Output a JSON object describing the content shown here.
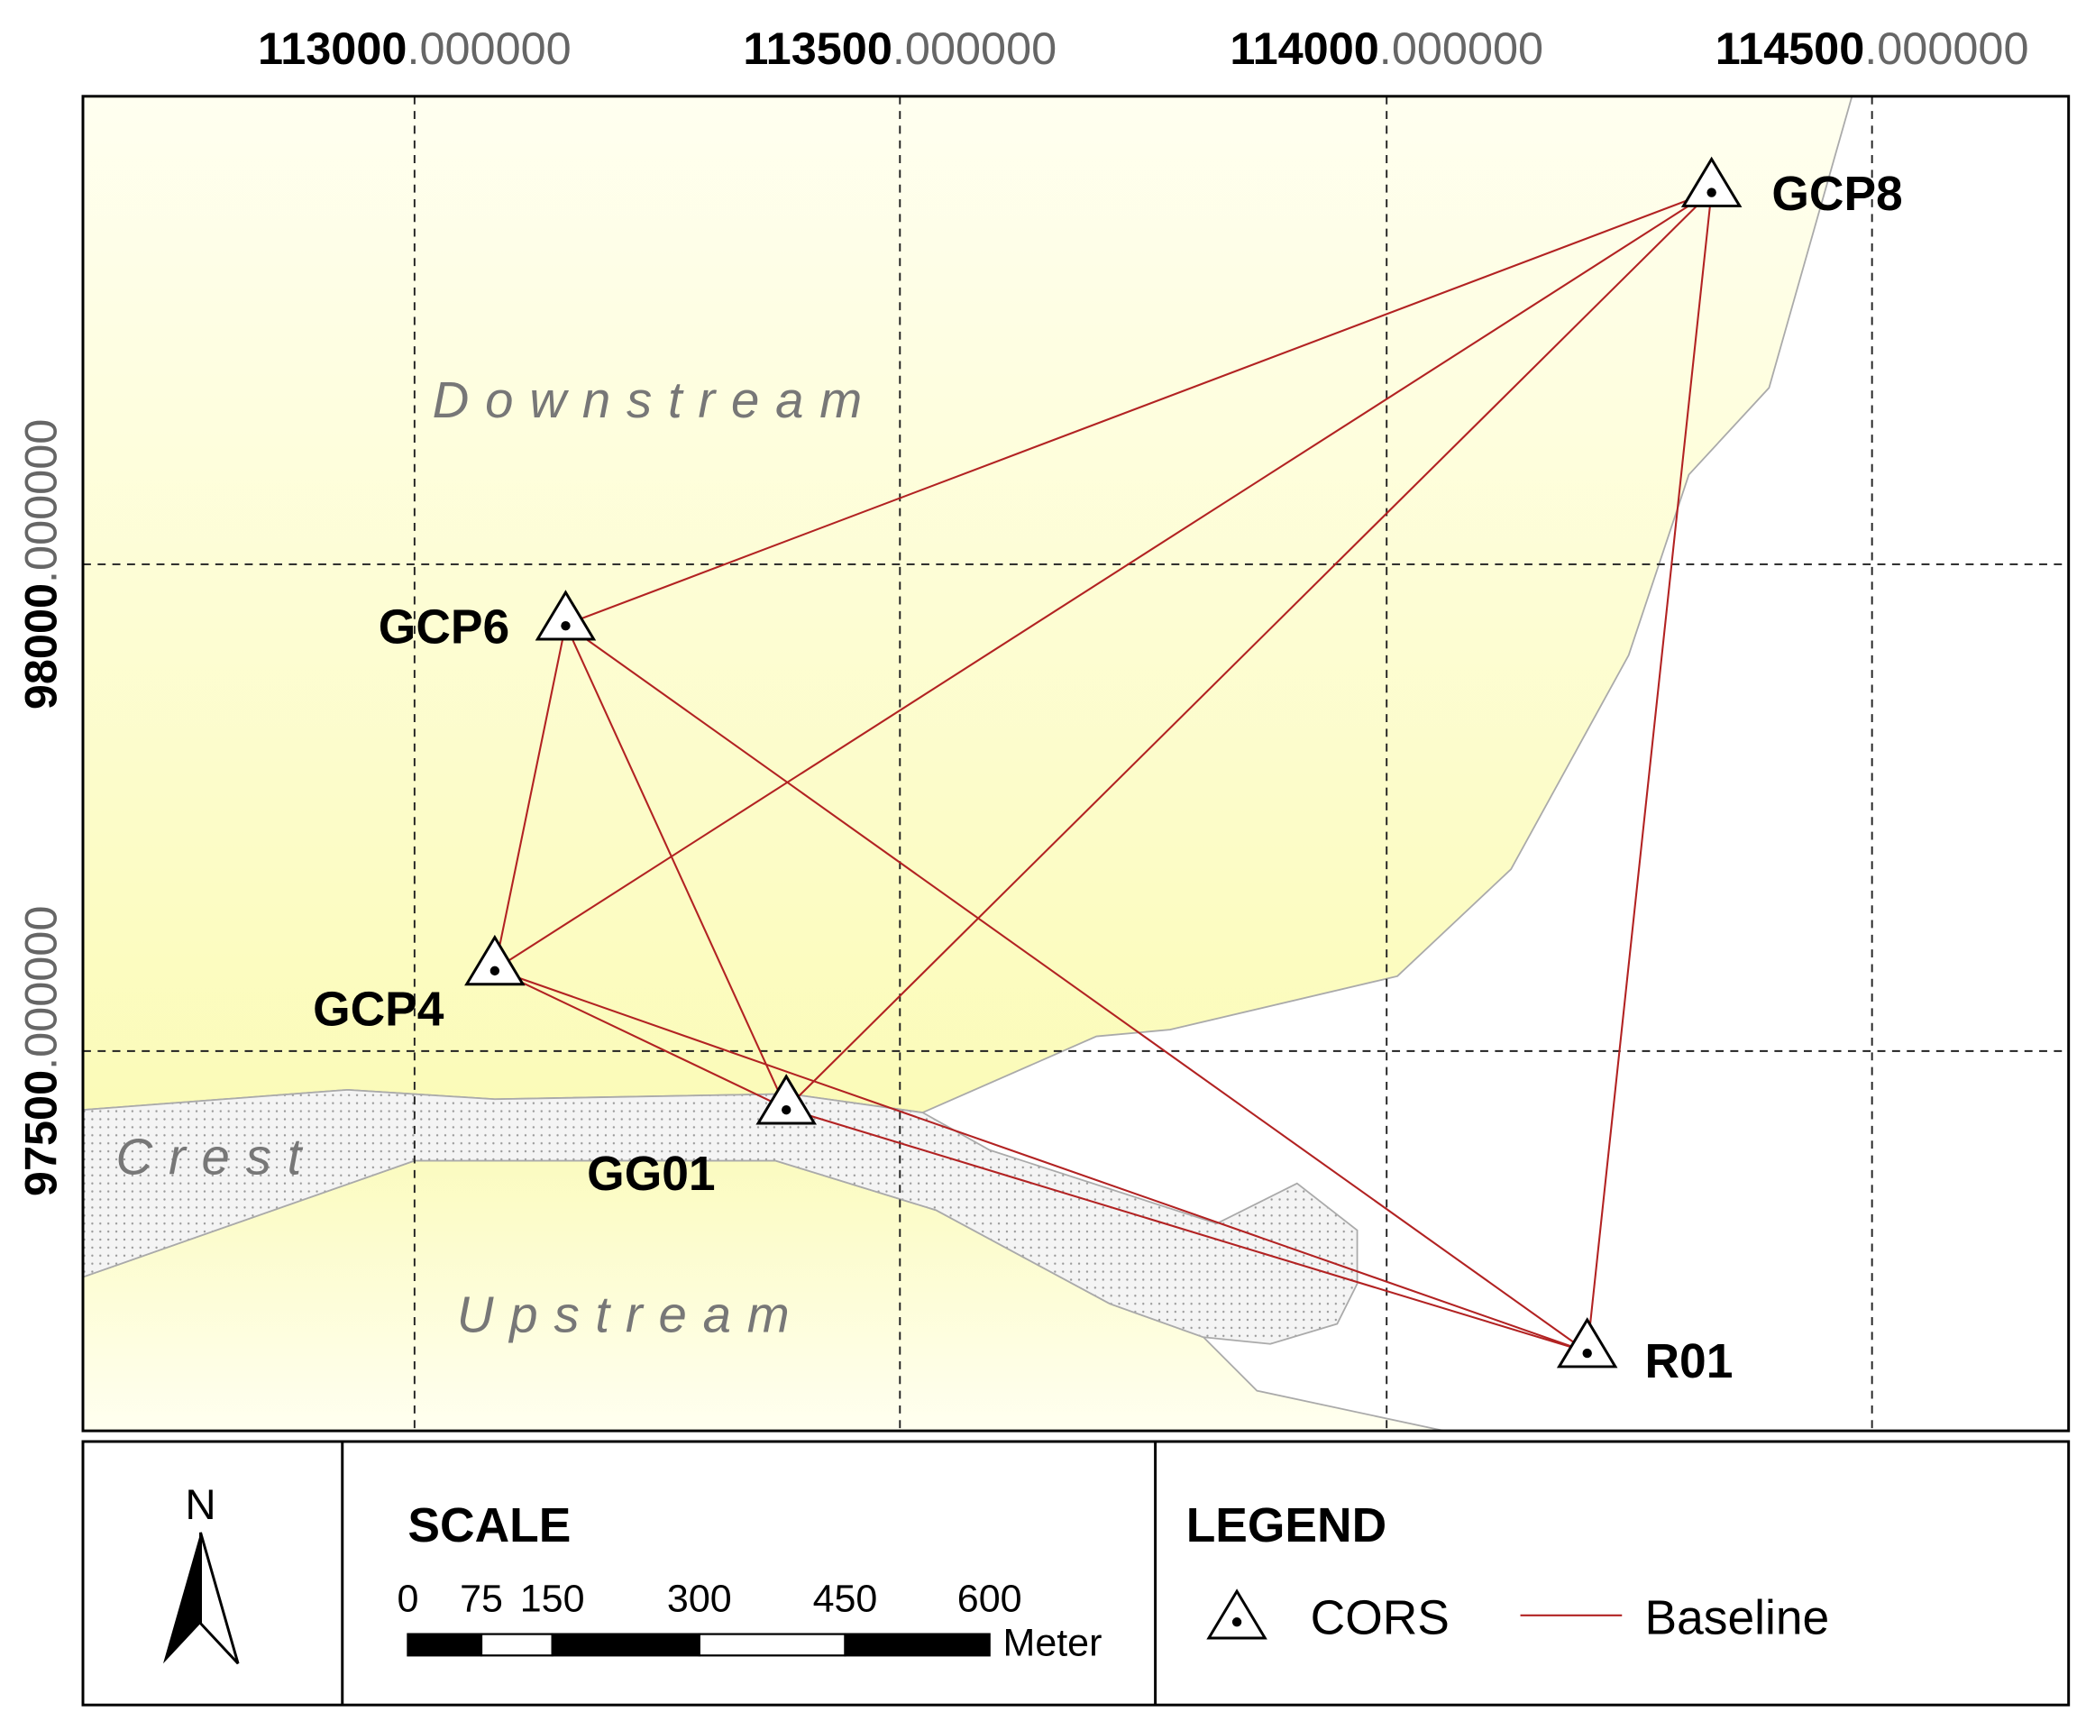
{
  "map": {
    "x_ticks": [
      {
        "whole": "113000",
        "fraction": ".000000"
      },
      {
        "whole": "113500",
        "fraction": ".000000"
      },
      {
        "whole": "114000",
        "fraction": ".000000"
      },
      {
        "whole": "114500",
        "fraction": ".000000"
      }
    ],
    "y_ticks": [
      {
        "whole": "97500",
        "fraction": ".000000"
      },
      {
        "whole": "98000",
        "fraction": ".000000"
      }
    ],
    "regions": [
      "Downstream",
      "Crest",
      "Upstream"
    ],
    "stations": [
      "GCP8",
      "GCP6",
      "GCP4",
      "GG01",
      "R01"
    ],
    "north": "N",
    "scale": {
      "title": "SCALE",
      "labels": [
        "0",
        "75",
        "150",
        "300",
        "450",
        "600"
      ],
      "unit": "Meter"
    },
    "legend": {
      "title": "LEGEND",
      "items": [
        "CORS",
        "Baseline"
      ]
    }
  }
}
